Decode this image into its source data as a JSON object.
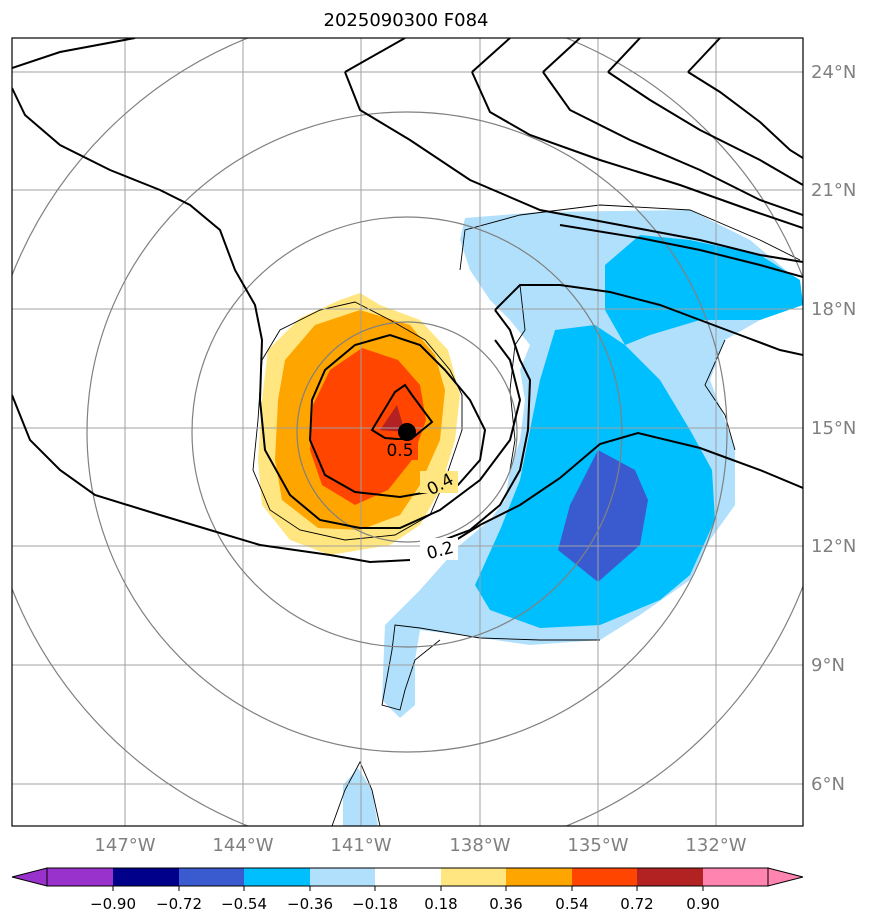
{
  "title": "2025090300 F084",
  "map": {
    "lat_labels": [
      "24°N",
      "21°N",
      "18°N",
      "15°N",
      "12°N",
      "9°N",
      "6°N"
    ],
    "lon_labels": [
      "147°W",
      "144°W",
      "141°W",
      "138°W",
      "135°W",
      "132°W"
    ],
    "contour_labels": [
      "0.5",
      "0.4",
      "0.2"
    ],
    "storm_center": {
      "lat": 15.0,
      "lon": -139.9
    },
    "colors": {
      "grid": "#a0a0a0",
      "range_rings": "#808080",
      "contours": "#000000",
      "axis_label": "#808080",
      "storm_marker": "#000000"
    }
  },
  "colorbar": {
    "tick_labels": [
      "−0.90",
      "−0.72",
      "−0.54",
      "−0.36",
      "−0.18",
      "0.18",
      "0.36",
      "0.54",
      "0.72",
      "0.90"
    ],
    "colors": [
      "#9932cc",
      "#00008b",
      "#3a5bd0",
      "#00bfff",
      "#b0e0fb",
      "#ffffff",
      "#ffe680",
      "#ffa500",
      "#ff4500",
      "#b22222",
      "#ff85b0"
    ]
  }
}
